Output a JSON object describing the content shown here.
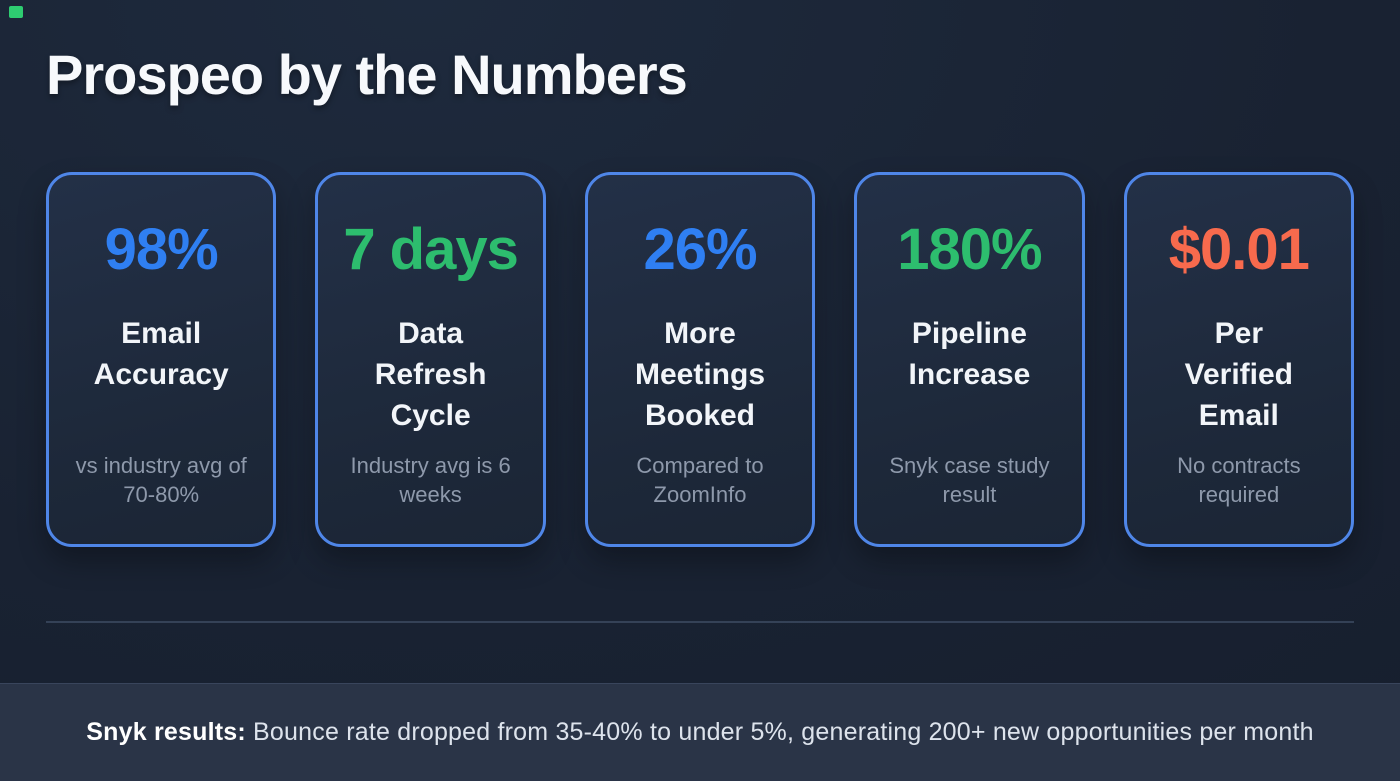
{
  "page": {
    "title": "Prospeo by the Numbers"
  },
  "colors": {
    "background": "#192232",
    "card_border": "#4f86e8",
    "stat_blue": "#2f7ff2",
    "stat_green": "#2dbd6e",
    "stat_coral": "#f76a4d",
    "footer_background": "#2a3447",
    "corner_accent": "#2ecc71"
  },
  "cards": [
    {
      "value": "98%",
      "value_color": "blue",
      "label": "Email Accuracy",
      "sub": "vs industry avg of 70-80%"
    },
    {
      "value": "7 days",
      "value_color": "green",
      "label": "Data Refresh Cycle",
      "sub": "Industry avg is 6 weeks"
    },
    {
      "value": "26%",
      "value_color": "blue",
      "label": "More Meetings Booked",
      "sub": "Compared to ZoomInfo"
    },
    {
      "value": "180%",
      "value_color": "green",
      "label": "Pipeline Increase",
      "sub": "Snyk case study result"
    },
    {
      "value": "$0.01",
      "value_color": "coral",
      "label": "Per Verified Email",
      "sub": "No contracts required"
    }
  ],
  "footer": {
    "highlight": "Snyk results:",
    "text": " Bounce rate dropped from 35-40% to under 5%, generating 200+ new opportunities per month"
  }
}
